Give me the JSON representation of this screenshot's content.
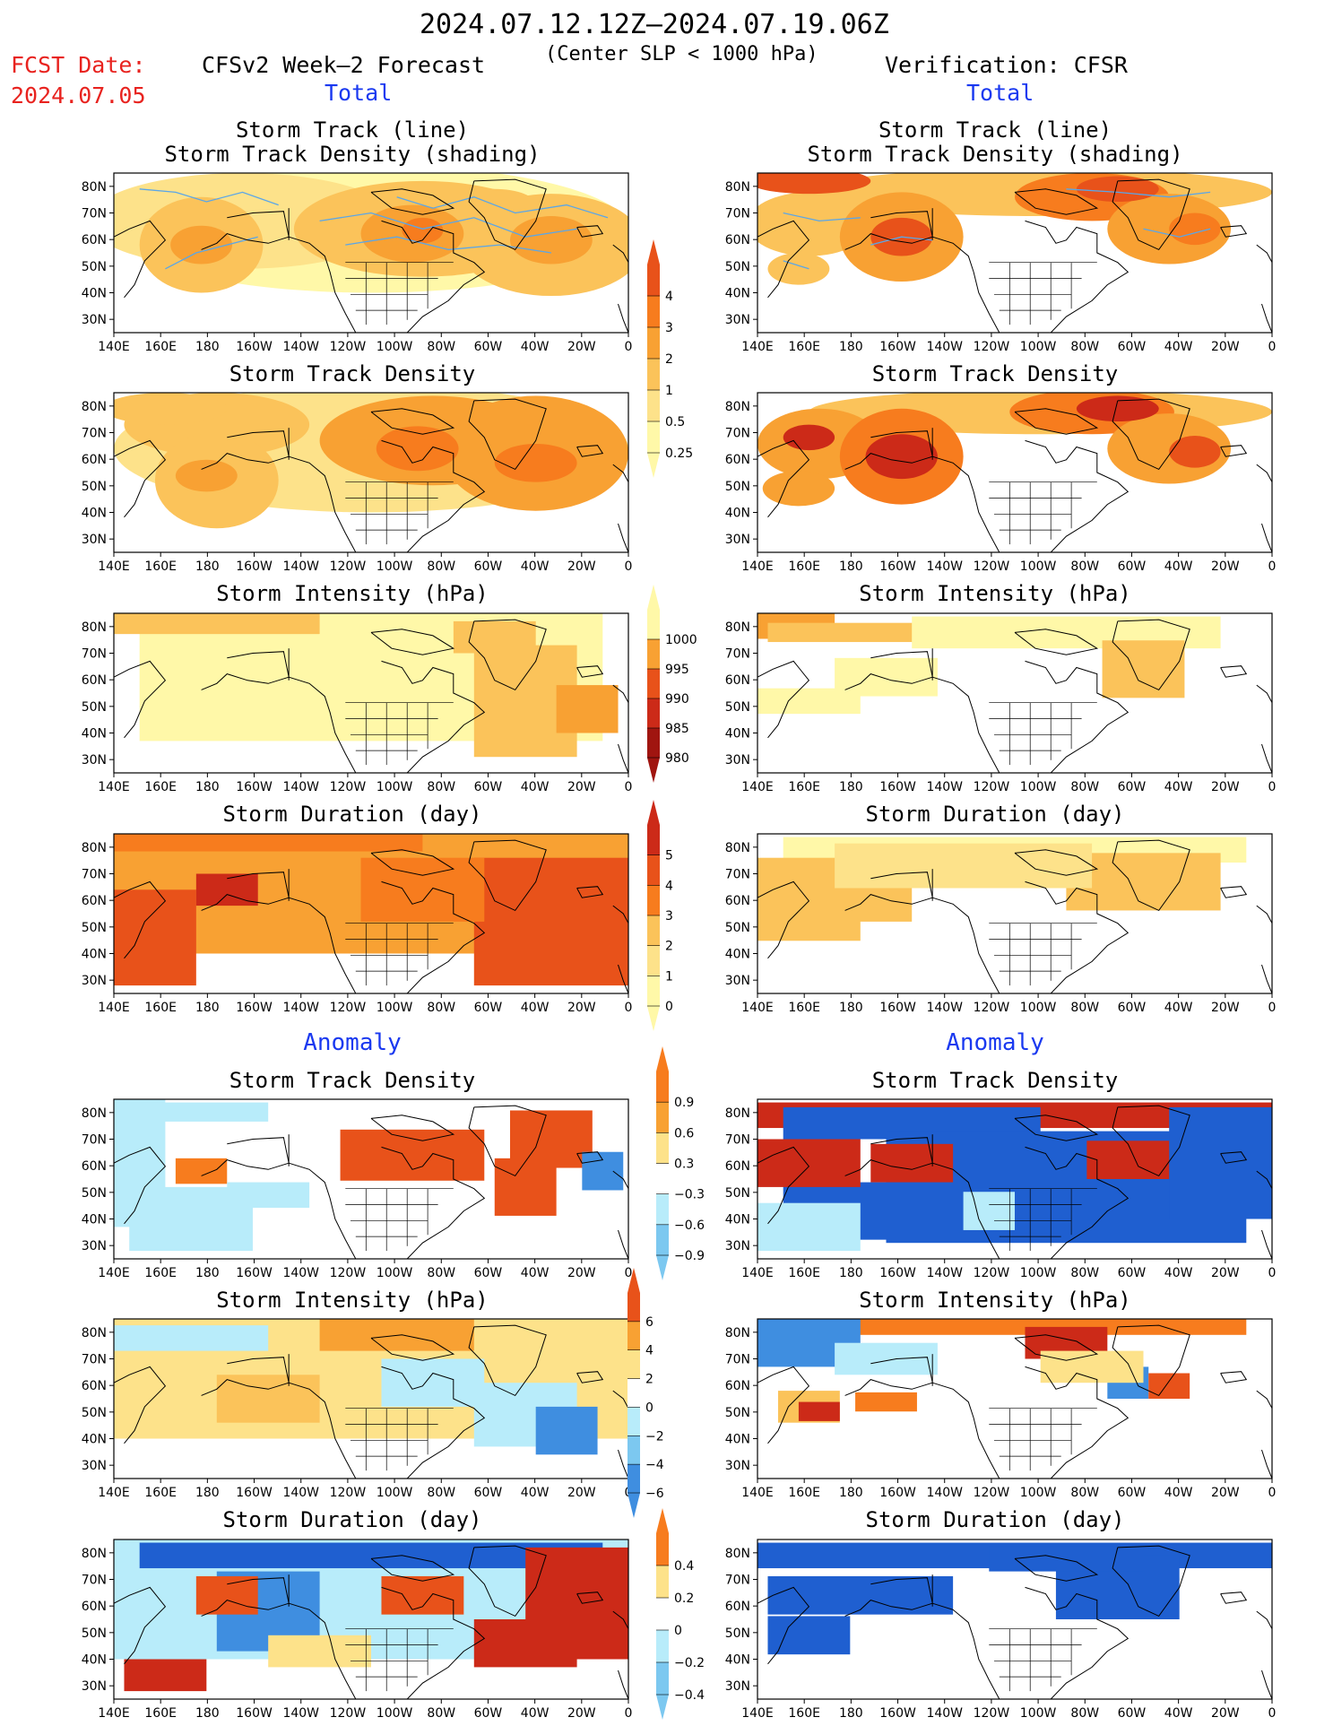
{
  "header": {
    "period": "2024.07.12.12Z–2024.07.19.06Z",
    "criterion": "(Center SLP < 1000 hPa)",
    "fcst_label": "FCST Date:",
    "fcst_date": "2024.07.05",
    "left_title": "CFSv2 Week–2 Forecast",
    "right_title": "Verification: CFSR",
    "left_section": "Total",
    "right_section": "Total"
  },
  "anomaly": {
    "left": "Anomaly",
    "right": "Anomaly"
  },
  "panels": {
    "track_title_1": "Storm Track (line)",
    "track_title_2": "Storm Track Density (shading)",
    "density": "Storm Track Density",
    "intensity": "Storm Intensity (hPa)",
    "duration": "Storm Duration (day)"
  },
  "axes": {
    "lon_labels": [
      "140E",
      "160E",
      "180",
      "160W",
      "140W",
      "120W",
      "100W",
      "80W",
      "60W",
      "40W",
      "20W",
      "0"
    ],
    "lat_labels": [
      "80N",
      "70N",
      "60N",
      "50N",
      "40N",
      "30N"
    ]
  },
  "colorbars": {
    "density_total": [
      "4",
      "3",
      "2",
      "1",
      "0.5",
      "0.25"
    ],
    "intensity_total": [
      "1000",
      "995",
      "990",
      "985",
      "980"
    ],
    "duration_total": [
      "5",
      "4",
      "3",
      "2",
      "1",
      "0"
    ],
    "density_anom": [
      "0.9",
      "0.6",
      "0.3",
      "−0.3",
      "−0.6",
      "−0.9"
    ],
    "intensity_anom": [
      "6",
      "4",
      "2",
      "0",
      "−2",
      "−4",
      "−6"
    ],
    "duration_anom": [
      "0.4",
      "0.2",
      "0",
      "−0.2",
      "−0.4"
    ]
  },
  "colors": {
    "warm": [
      "#fff8a8",
      "#fde28a",
      "#fbc35a",
      "#f8a133",
      "#f77c1e",
      "#e8521a",
      "#cc2a18",
      "#a01510"
    ],
    "cool": [
      "#b8ecfa",
      "#7cc8f0",
      "#3f8ee0",
      "#1f5fd0"
    ],
    "track": "#5aa6e8"
  },
  "chart_data": [
    {
      "type": "heatmap",
      "panel": "forecast-total-track",
      "title": "Storm Track (line) / Storm Track Density (shading)",
      "hotspots": [
        "60N 180",
        "65N 80W",
        "62N 35W"
      ]
    },
    {
      "type": "heatmap",
      "panel": "forecast-total-density",
      "title": "Storm Track Density",
      "colorbar": [
        0.25,
        0.5,
        1,
        2,
        3,
        4
      ]
    },
    {
      "type": "heatmap",
      "panel": "forecast-total-intensity",
      "title": "Storm Intensity (hPa)",
      "colorbar": [
        980,
        985,
        990,
        995,
        1000
      ]
    },
    {
      "type": "heatmap",
      "panel": "forecast-total-duration",
      "title": "Storm Duration (day)",
      "colorbar": [
        0,
        1,
        2,
        3,
        4,
        5
      ]
    },
    {
      "type": "heatmap",
      "panel": "forecast-anomaly-density",
      "title": "Storm Track Density",
      "colorbar": [
        -0.9,
        -0.6,
        -0.3,
        0.3,
        0.6,
        0.9
      ]
    },
    {
      "type": "heatmap",
      "panel": "forecast-anomaly-intensity",
      "title": "Storm Intensity (hPa)",
      "colorbar": [
        -6,
        -4,
        -2,
        0,
        2,
        4,
        6
      ]
    },
    {
      "type": "heatmap",
      "panel": "forecast-anomaly-duration",
      "title": "Storm Duration (day)",
      "colorbar": [
        -0.4,
        -0.2,
        0,
        0.2,
        0.4
      ]
    },
    {
      "type": "heatmap",
      "panel": "verification-total-track",
      "title": "Storm Track (line) / Storm Track Density (shading)"
    },
    {
      "type": "heatmap",
      "panel": "verification-total-density",
      "title": "Storm Track Density"
    },
    {
      "type": "heatmap",
      "panel": "verification-total-intensity",
      "title": "Storm Intensity (hPa)"
    },
    {
      "type": "heatmap",
      "panel": "verification-total-duration",
      "title": "Storm Duration (day)"
    },
    {
      "type": "heatmap",
      "panel": "verification-anomaly-density",
      "title": "Storm Track Density"
    },
    {
      "type": "heatmap",
      "panel": "verification-anomaly-intensity",
      "title": "Storm Intensity (hPa)"
    },
    {
      "type": "heatmap",
      "panel": "verification-anomaly-duration",
      "title": "Storm Duration (day)"
    }
  ]
}
